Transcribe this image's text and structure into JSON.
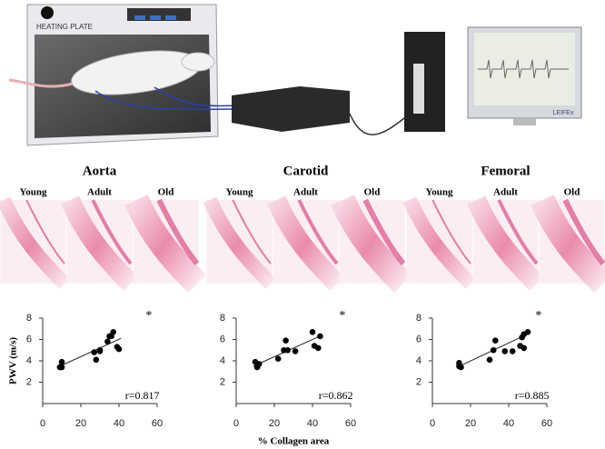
{
  "illustration": {
    "plate_label": "HEATING PLATE",
    "monitor_label": "LEIFEx"
  },
  "histology": [
    {
      "title": "Aorta",
      "labels": [
        "Young",
        "Adult",
        "Old"
      ]
    },
    {
      "title": "Carotid",
      "labels": [
        "Young",
        "Adult",
        "Old"
      ]
    },
    {
      "title": "Femoral",
      "labels": [
        "Young",
        "Adult",
        "Old"
      ]
    }
  ],
  "chart_data": [
    {
      "type": "scatter",
      "ylabel": "PWV (m/s)",
      "color": "#000000",
      "x": [
        9,
        10,
        10,
        27,
        28,
        30,
        30,
        34,
        35,
        36,
        37,
        39,
        40
      ],
      "y": [
        3.4,
        3.4,
        3.9,
        4.8,
        4.1,
        5.0,
        4.9,
        5.8,
        6.3,
        6.3,
        6.7,
        5.3,
        5.1
      ],
      "fit": {
        "x": [
          9,
          41
        ],
        "y": [
          3.5,
          6.1
        ]
      },
      "xlim": [
        0,
        60
      ],
      "ylim": [
        0,
        8
      ],
      "xticks": [
        0,
        20,
        40,
        60
      ],
      "yticks": [
        2,
        4,
        6,
        8
      ],
      "significance": "*",
      "r_label": "r=0.817"
    },
    {
      "type": "scatter",
      "xlabel": "% Collagen area",
      "color": "#000000",
      "x": [
        10,
        11,
        12,
        22,
        25,
        26,
        27,
        31,
        40,
        41,
        43,
        44
      ],
      "y": [
        3.9,
        3.4,
        3.7,
        4.2,
        5.0,
        5.9,
        5.0,
        4.9,
        6.7,
        5.4,
        5.2,
        6.3
      ],
      "fit": {
        "x": [
          9,
          45
        ],
        "y": [
          3.5,
          6.4
        ]
      },
      "xlim": [
        0,
        60
      ],
      "ylim": [
        0,
        8
      ],
      "xticks": [
        0,
        20,
        40,
        60
      ],
      "yticks": [
        2,
        4,
        6,
        8
      ],
      "significance": "*",
      "r_label": "r=0.862"
    },
    {
      "type": "scatter",
      "color": "#000000",
      "x": [
        14,
        15,
        14,
        30,
        32,
        33,
        38,
        42,
        46,
        47,
        48,
        48,
        50
      ],
      "y": [
        3.8,
        3.4,
        3.5,
        4.1,
        5.0,
        5.9,
        4.9,
        4.9,
        5.4,
        6.2,
        5.2,
        6.5,
        6.7
      ],
      "fit": {
        "x": [
          13,
          51
        ],
        "y": [
          3.4,
          6.6
        ]
      },
      "xlim": [
        0,
        60
      ],
      "ylim": [
        0,
        8
      ],
      "xticks": [
        0,
        20,
        40,
        60
      ],
      "yticks": [
        2,
        4,
        6,
        8
      ],
      "significance": "*",
      "r_label": "r=0.885"
    }
  ]
}
